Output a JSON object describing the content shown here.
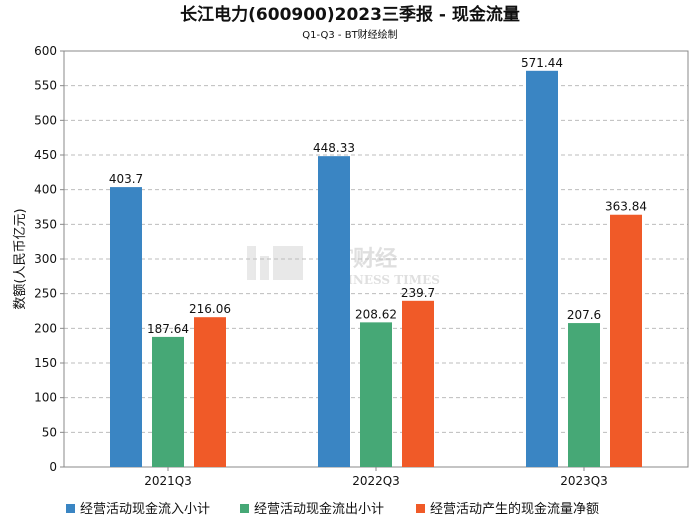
{
  "chart_data": {
    "type": "bar",
    "title": "长江电力(600900)2023三季报 - 现金流量",
    "subtitle": "Q1-Q3 - BT财经绘制",
    "ylabel": "数额(人民币亿元)",
    "xlabel": "",
    "ylim": [
      0,
      600
    ],
    "yticks": [
      0,
      50,
      100,
      150,
      200,
      250,
      300,
      350,
      400,
      450,
      500,
      550,
      600
    ],
    "grid": true,
    "legend_position": "bottom",
    "categories": [
      "2021Q3",
      "2022Q3",
      "2023Q3"
    ],
    "series": [
      {
        "name": "经营活动现金流入小计",
        "color": "#3a85c3",
        "values": [
          403.7,
          448.33,
          571.44
        ],
        "labels": [
          "403.7",
          "448.33",
          "571.44"
        ]
      },
      {
        "name": "经营活动现金流出小计",
        "color": "#46a876",
        "values": [
          187.64,
          208.62,
          207.6
        ],
        "labels": [
          "187.64",
          "208.62",
          "207.6"
        ]
      },
      {
        "name": "经营活动产生的现金流量净额",
        "color": "#f05a28",
        "values": [
          216.06,
          239.7,
          363.84
        ],
        "labels": [
          "216.06",
          "239.7",
          "363.84"
        ]
      }
    ]
  },
  "watermark": {
    "text": "BT财经",
    "subtext": "BUSINESS TIMES"
  }
}
